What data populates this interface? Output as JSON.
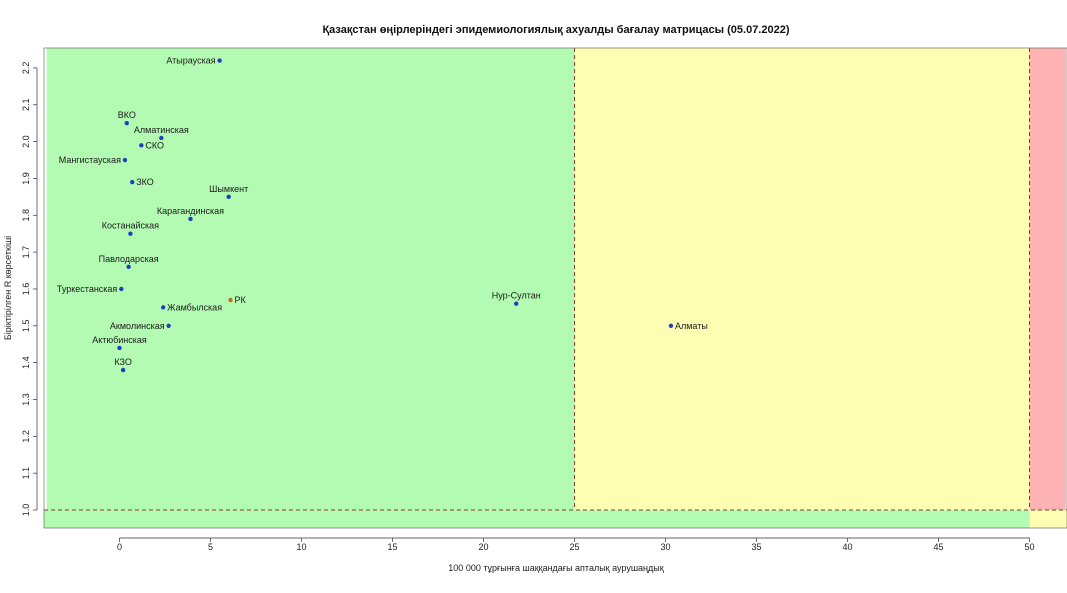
{
  "chart_data": {
    "type": "scatter",
    "title": "Қазақстан өңірлеріндегі эпидемиологиялық ахуалды бағалау матрицасы  (05.07.2022)",
    "xlabel": "100 000 тұрғынға шаққандағы апталық аурушаңдық",
    "ylabel": "Біріктірілген R көрсеткіші",
    "xlim": [
      -4,
      52
    ],
    "ylim": [
      0.95,
      2.25
    ],
    "x_ticks": [
      0,
      5,
      10,
      15,
      20,
      25,
      30,
      35,
      40,
      45,
      50
    ],
    "y_ticks": [
      1.0,
      1.1,
      1.2,
      1.3,
      1.4,
      1.5,
      1.6,
      1.7,
      1.8,
      1.9,
      2.0,
      2.1,
      2.2
    ],
    "zones": [
      {
        "name": "green",
        "x_from": -4,
        "x_to": 25,
        "color": "#b3fbb3"
      },
      {
        "name": "yellow",
        "x_from": 25,
        "x_to": 50,
        "color": "#ffffb3"
      },
      {
        "name": "red",
        "x_from": 50,
        "x_to": 52,
        "color": "#fdb3b3"
      }
    ],
    "thresholds": {
      "x": [
        25,
        50
      ],
      "y": 1.0,
      "line_color": "#8b3a2b"
    },
    "points": [
      {
        "name": "Атырауская",
        "x": 5.5,
        "y": 2.22,
        "color": "#1f3fbf",
        "label_pos": "left"
      },
      {
        "name": "ВКО",
        "x": 0.4,
        "y": 2.05,
        "color": "#1f3fbf",
        "label_pos": "top"
      },
      {
        "name": "Алматинская",
        "x": 2.3,
        "y": 2.01,
        "color": "#1f3fbf",
        "label_pos": "top"
      },
      {
        "name": "СКО",
        "x": 1.2,
        "y": 1.99,
        "color": "#1f3fbf",
        "label_pos": "right"
      },
      {
        "name": "Мангистауская",
        "x": 0.3,
        "y": 1.95,
        "color": "#1f3fbf",
        "label_pos": "left"
      },
      {
        "name": "ЗКО",
        "x": 0.7,
        "y": 1.89,
        "color": "#1f3fbf",
        "label_pos": "right"
      },
      {
        "name": "Шымкент",
        "x": 6.0,
        "y": 1.85,
        "color": "#1f3fbf",
        "label_pos": "top"
      },
      {
        "name": "Карагандинская",
        "x": 3.9,
        "y": 1.79,
        "color": "#1f3fbf",
        "label_pos": "top"
      },
      {
        "name": "Костанайская",
        "x": 0.6,
        "y": 1.75,
        "color": "#1f3fbf",
        "label_pos": "top"
      },
      {
        "name": "Павлодарская",
        "x": 0.5,
        "y": 1.66,
        "color": "#1f3fbf",
        "label_pos": "top"
      },
      {
        "name": "Туркестанская",
        "x": 0.1,
        "y": 1.6,
        "color": "#1f3fbf",
        "label_pos": "left"
      },
      {
        "name": "РК",
        "x": 6.1,
        "y": 1.57,
        "color": "#c87010",
        "label_pos": "right"
      },
      {
        "name": "Жамбылская",
        "x": 2.4,
        "y": 1.55,
        "color": "#1f3fbf",
        "label_pos": "right"
      },
      {
        "name": "Нур-Султан",
        "x": 21.8,
        "y": 1.56,
        "color": "#1f3fbf",
        "label_pos": "top"
      },
      {
        "name": "Акмолинская",
        "x": 2.7,
        "y": 1.5,
        "color": "#1f3fbf",
        "label_pos": "left"
      },
      {
        "name": "Алматы",
        "x": 30.3,
        "y": 1.5,
        "color": "#1f3fbf",
        "label_pos": "right"
      },
      {
        "name": "Актюбинская",
        "x": 0.0,
        "y": 1.44,
        "color": "#1f3fbf",
        "label_pos": "top"
      },
      {
        "name": "КЗО",
        "x": 0.2,
        "y": 1.38,
        "color": "#1f3fbf",
        "label_pos": "top"
      }
    ]
  }
}
